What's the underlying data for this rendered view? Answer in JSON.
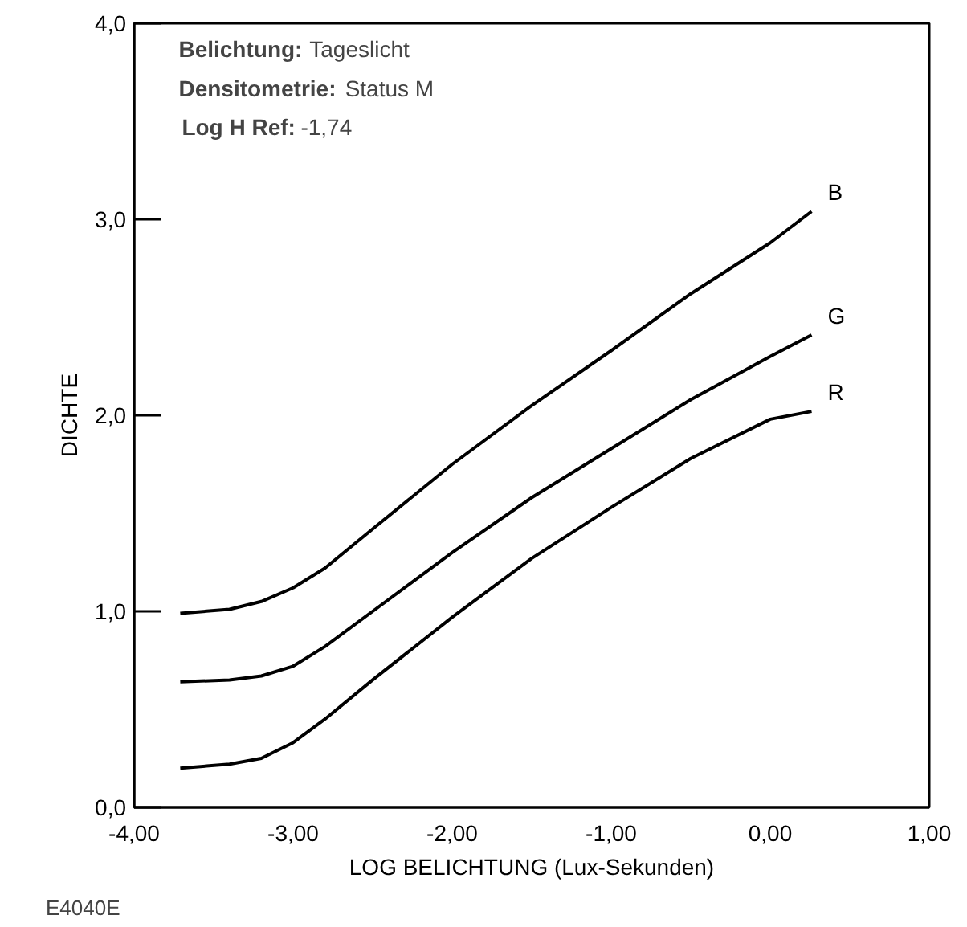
{
  "chart_data": {
    "type": "line",
    "xlabel": "LOG BELICHTUNG (Lux-Sekunden)",
    "ylabel": "DICHTE",
    "xlim": [
      -4,
      1
    ],
    "ylim": [
      0,
      4
    ],
    "xticks": [
      {
        "value": -4,
        "label": "-4,00"
      },
      {
        "value": -3,
        "label": "-3,00"
      },
      {
        "value": -2,
        "label": "-2,00"
      },
      {
        "value": -1,
        "label": "-1,00"
      },
      {
        "value": 0,
        "label": "0,00"
      },
      {
        "value": 1,
        "label": "1,00"
      }
    ],
    "yticks": [
      {
        "value": 0,
        "label": "0,0"
      },
      {
        "value": 1,
        "label": "1,0"
      },
      {
        "value": 2,
        "label": "2,0"
      },
      {
        "value": 3,
        "label": "3,0"
      },
      {
        "value": 4,
        "label": "4,0"
      }
    ],
    "x": [
      -3.71,
      -3.4,
      -3.2,
      -3.0,
      -2.8,
      -2.5,
      -2.0,
      -1.5,
      -1.0,
      -0.5,
      0,
      0.26
    ],
    "series": [
      {
        "name": "B",
        "color": "#000000",
        "values": [
          0.99,
          1.01,
          1.05,
          1.12,
          1.22,
          1.42,
          1.75,
          2.05,
          2.33,
          2.62,
          2.88,
          3.04
        ]
      },
      {
        "name": "G",
        "color": "#000000",
        "values": [
          0.64,
          0.65,
          0.67,
          0.72,
          0.82,
          1.0,
          1.3,
          1.58,
          1.83,
          2.08,
          2.3,
          2.41
        ]
      },
      {
        "name": "R",
        "color": "#000000",
        "values": [
          0.2,
          0.22,
          0.25,
          0.33,
          0.45,
          0.65,
          0.97,
          1.27,
          1.53,
          1.78,
          1.98,
          2.02
        ]
      }
    ],
    "annotations": [
      "Belichtung: Tageslicht",
      "Densitometrie: Status M",
      "Log H Ref: -1,74",
      "E4040E"
    ],
    "grid": false,
    "marker": "none",
    "line_style": "solid"
  }
}
